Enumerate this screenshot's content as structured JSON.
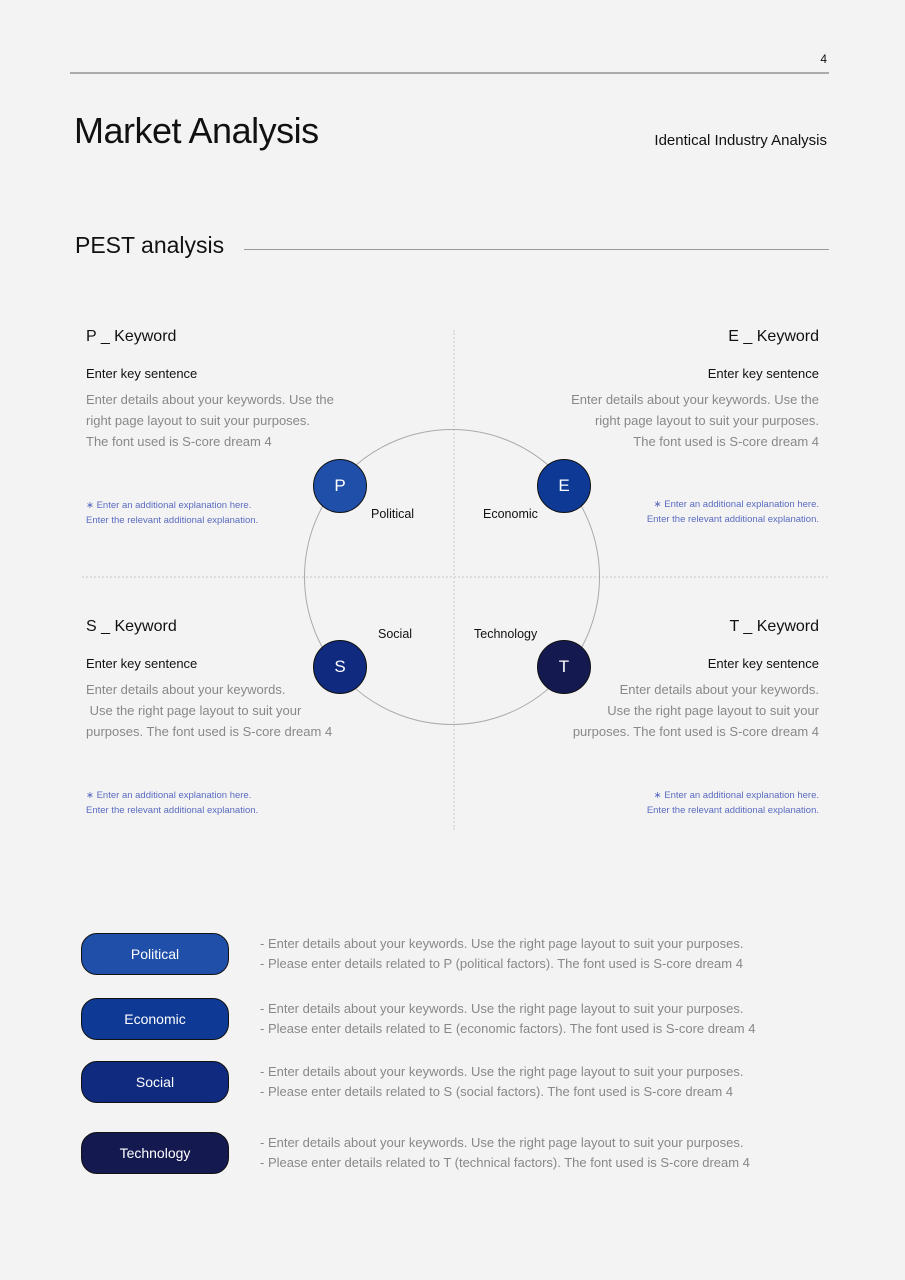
{
  "page_number": "4",
  "title": "Market Analysis",
  "subtitle": "Identical Industry Analysis",
  "section": "PEST analysis",
  "quadrants": [
    {
      "keyword": "P _ Keyword",
      "sentence": "Enter key sentence",
      "details": [
        "Enter details about your keywords. Use the",
        "right page layout to suit your purposes.",
        "The font used is S-core dream 4"
      ],
      "additional": [
        "∗ Enter an additional explanation here.",
        "Enter the relevant additional explanation."
      ]
    },
    {
      "keyword": "E _ Keyword",
      "sentence": "Enter key sentence",
      "details": [
        "Enter details about your keywords. Use the",
        "right page layout to suit your purposes.",
        "The font used is S-core dream 4"
      ],
      "additional": [
        "∗ Enter an additional explanation here.",
        "Enter the relevant additional explanation."
      ]
    },
    {
      "keyword": "S _ Keyword",
      "sentence": "Enter key sentence",
      "details": [
        "Enter details about your keywords.",
        " Use the right page layout to suit your",
        "purposes. The font used is S-core dream 4"
      ],
      "additional": [
        "∗ Enter an additional explanation here.",
        "Enter the relevant additional explanation."
      ]
    },
    {
      "keyword": "T _ Keyword",
      "sentence": "Enter key sentence",
      "details": [
        "Enter details about your keywords.",
        "Use the right page layout to suit your",
        "purposes. The font used is S-core dream 4"
      ],
      "additional": [
        "∗ Enter an additional explanation here.",
        "Enter the relevant additional explanation."
      ]
    }
  ],
  "circles": [
    {
      "letter": "P",
      "label": "Political",
      "color": "#1f4fa8"
    },
    {
      "letter": "E",
      "label": "Economic",
      "color": "#0e3a95"
    },
    {
      "letter": "S",
      "label": "Social",
      "color": "#0f2a7e"
    },
    {
      "letter": "T",
      "label": "Technology",
      "color": "#141a50"
    }
  ],
  "factors": [
    {
      "label": "Political",
      "color": "#1f4fa8",
      "lines": [
        "- Enter details about your keywords. Use the right page layout to suit your purposes.",
        "- Please enter details related to P (political factors).  The font used is S-core dream 4"
      ]
    },
    {
      "label": "Economic",
      "color": "#0e3a95",
      "lines": [
        "- Enter details about your keywords. Use the right page layout to suit your purposes.",
        "- Please enter details related to E (economic factors).  The font used is S-core dream 4"
      ]
    },
    {
      "label": "Social",
      "color": "#0f2a7e",
      "lines": [
        "- Enter details about your keywords. Use the right page layout to suit your purposes.",
        "- Please enter details related to S (social factors).  The font used is S-core dream 4"
      ]
    },
    {
      "label": "Technology",
      "color": "#141a50",
      "lines": [
        "- Enter details about your keywords. Use the right page layout to suit your purposes.",
        "- Please enter details related to T (technical factors).  The font used is S-core dream 4"
      ]
    }
  ]
}
